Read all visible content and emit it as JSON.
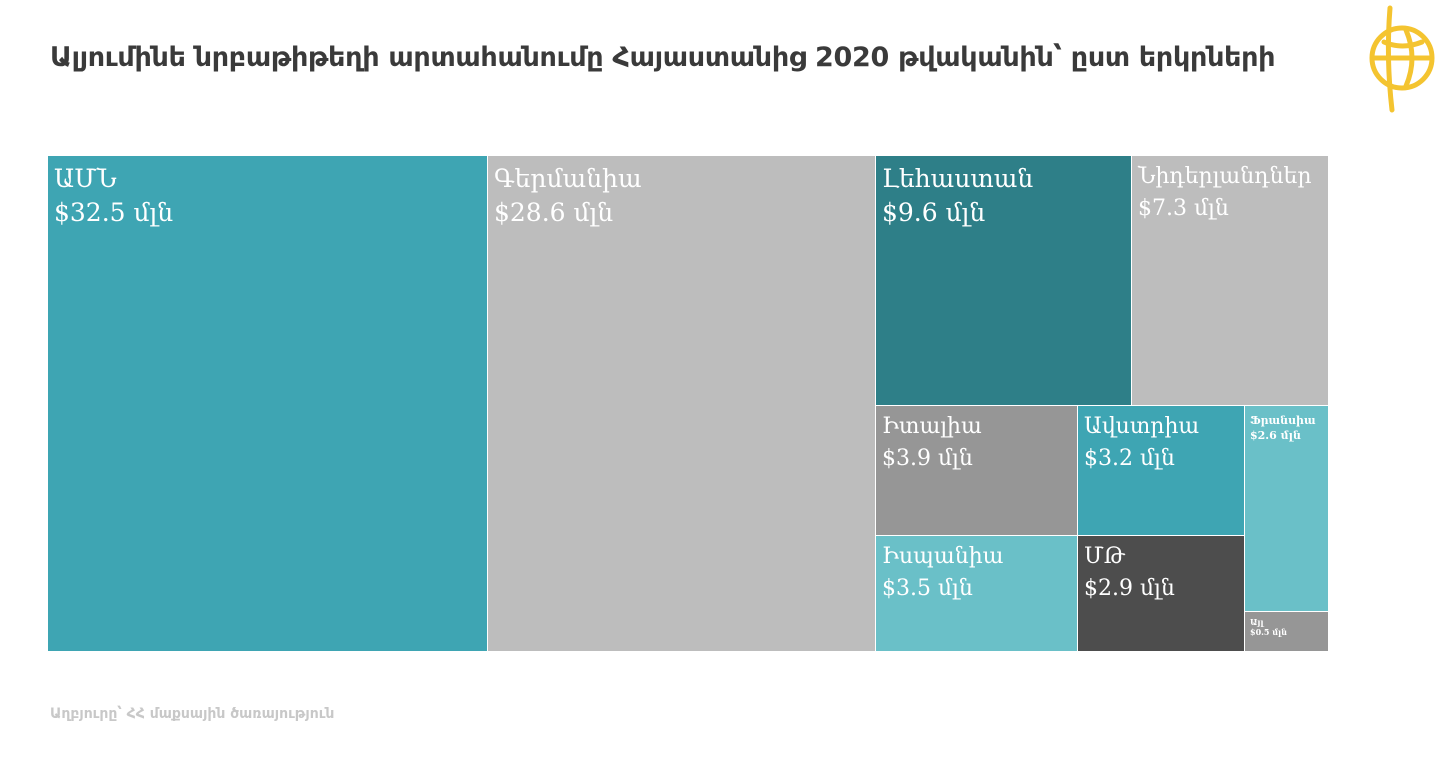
{
  "title": "Ալյումինե նրբաթիթեղի արտահանումը Հայաստանից 2020 թվականին՝ ըստ երկրների",
  "source": "Աղբյուրը՝ ՀՀ մաքսային ծառայություն",
  "colors": {
    "teal": "#3ea5b3",
    "light_gray": "#bdbdbd",
    "dark_teal": "#2e7f88",
    "mid_gray": "#969696",
    "light_teal": "#6ac0c8",
    "dark_gray": "#4d4d4d",
    "logo_yellow": "#f4c430"
  },
  "logo_icon": "globe-logo-icon",
  "chart_data": {
    "type": "treemap",
    "unit": "մլն",
    "currency": "$",
    "items": [
      {
        "id": "usa",
        "name": "ԱՄՆ",
        "label": "$32.5 մլն",
        "value": 32.5,
        "color": "#3ea5b3"
      },
      {
        "id": "germany",
        "name": "Գերմանիա",
        "label": "$28.6 մլն",
        "value": 28.6,
        "color": "#bdbdbd"
      },
      {
        "id": "poland",
        "name": "Լեհաստան",
        "label": "$9.6 մլն",
        "value": 9.6,
        "color": "#2e7f88"
      },
      {
        "id": "netherlands",
        "name": "Նիդերլանդներ",
        "label": "$7.3 մլն",
        "value": 7.3,
        "color": "#bdbdbd"
      },
      {
        "id": "italy",
        "name": "Իտալիա",
        "label": "$3.9 մլն",
        "value": 3.9,
        "color": "#969696"
      },
      {
        "id": "austria",
        "name": "Ավստրիա",
        "label": "$3.2 մլն",
        "value": 3.2,
        "color": "#3ea5b3"
      },
      {
        "id": "france",
        "name": "Ֆրանսիա",
        "label": "$2.6 մլն",
        "value": 2.6,
        "color": "#6ac0c8"
      },
      {
        "id": "spain",
        "name": "Իսպանիա",
        "label": "$3.5 մլն",
        "value": 3.5,
        "color": "#6ac0c8"
      },
      {
        "id": "uk",
        "name": "ՄԹ",
        "label": "$2.9 մլն",
        "value": 2.9,
        "color": "#4d4d4d"
      },
      {
        "id": "other",
        "name": "Այլ",
        "label": "$0.5 մլն",
        "value": 0.5,
        "color": "#969696"
      }
    ]
  }
}
